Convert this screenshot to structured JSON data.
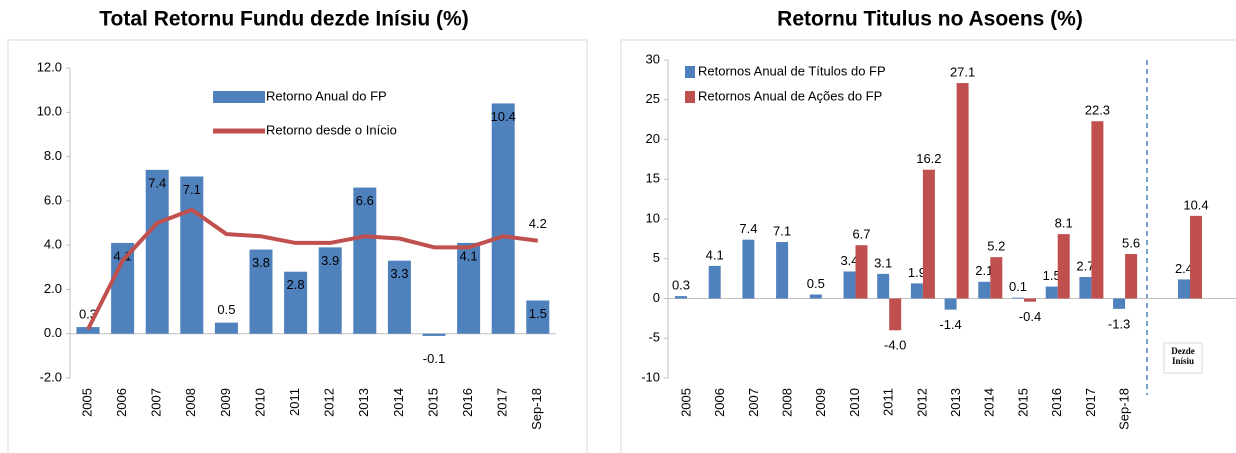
{
  "chart_data": [
    {
      "type": "combo",
      "title": "Total Retornu Fundu dezde Inísiu (%)",
      "categories": [
        "2005",
        "2006",
        "2007",
        "2008",
        "2009",
        "2010",
        "2011",
        "2012",
        "2013",
        "2014",
        "2015",
        "2016",
        "2017",
        "Sep-18"
      ],
      "series": [
        {
          "name": "Retorno Anual do FP",
          "kind": "bar",
          "color": "#4f81bd",
          "values": [
            0.3,
            4.1,
            7.4,
            7.1,
            0.5,
            3.8,
            2.8,
            3.9,
            6.6,
            3.3,
            -0.1,
            4.1,
            10.4,
            1.5
          ]
        },
        {
          "name": "Retorno desde o Início",
          "kind": "line",
          "color": "#c0504d",
          "values": [
            0.2,
            3.3,
            5.0,
            5.6,
            4.5,
            4.4,
            4.1,
            4.1,
            4.4,
            4.3,
            3.9,
            3.9,
            4.4,
            4.2
          ]
        }
      ],
      "ylim": [
        -2,
        12
      ],
      "yticks": [
        {
          "value": -2,
          "label": "-2.0"
        },
        {
          "value": 0,
          "label": "0.0"
        },
        {
          "value": 2,
          "label": "2.0"
        },
        {
          "value": 4,
          "label": "4.0"
        },
        {
          "value": 6,
          "label": "6.0"
        },
        {
          "value": 8,
          "label": "8.0"
        },
        {
          "value": 10,
          "label": "10.0"
        },
        {
          "value": 12,
          "label": "12.0"
        }
      ],
      "grid": false
    },
    {
      "type": "bar",
      "title": "Retornu Titulus no Asoens (%)",
      "categories": [
        "2005",
        "2006",
        "2007",
        "2008",
        "2009",
        "2010",
        "2011",
        "2012",
        "2013",
        "2014",
        "2015",
        "2016",
        "2017",
        "Sep-18",
        "Dezde Inísiu"
      ],
      "series": [
        {
          "name": "Retornos Anual de Títulos do FP",
          "color": "#4f81bd",
          "values": [
            0.3,
            4.1,
            7.4,
            7.1,
            0.5,
            3.4,
            3.1,
            1.9,
            -1.4,
            2.1,
            0.1,
            1.5,
            2.7,
            -1.3,
            2.4
          ]
        },
        {
          "name": "Retornos Anual de Ações do FP",
          "color": "#c0504d",
          "values": [
            null,
            null,
            null,
            null,
            null,
            6.7,
            -4.0,
            16.2,
            27.1,
            5.2,
            -0.4,
            8.1,
            22.3,
            5.6,
            10.4
          ],
          "value_labels": [
            null,
            null,
            null,
            null,
            null,
            "6.7",
            "-4.0",
            "16.2",
            "27.1",
            "5.2",
            "-0.4",
            "8.1",
            "22.3",
            "5.6",
            "10.4"
          ]
        }
      ],
      "ylim": [
        -10,
        30
      ],
      "yticks": [
        -10,
        -5,
        0,
        5,
        10,
        15,
        20,
        25,
        30
      ],
      "grid": false
    }
  ]
}
